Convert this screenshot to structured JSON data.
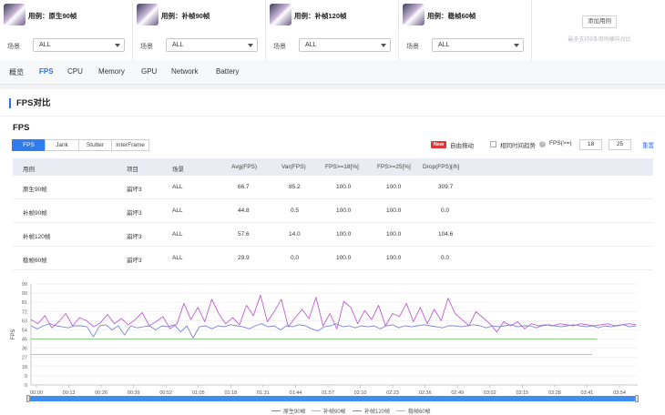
{
  "cases": [
    {
      "title": "用例：原生90帧",
      "scene_label": "场景",
      "scene_value": "ALL"
    },
    {
      "title": "用例：补帧90帧",
      "scene_label": "场景",
      "scene_value": "ALL"
    },
    {
      "title": "用例：补帧120帧",
      "scene_label": "场景",
      "scene_value": "ALL"
    },
    {
      "title": "用例：稳帧60帧",
      "scene_label": "场景",
      "scene_value": "ALL"
    }
  ],
  "add_case": {
    "label": "添加用例",
    "hint": "最多支持5条用例横向对比"
  },
  "tabs": [
    "概览",
    "FPS",
    "CPU",
    "Memory",
    "GPU",
    "Network",
    "Battery"
  ],
  "active_tab": "FPS",
  "section_title": "FPS对比",
  "sub_title": "FPS",
  "metric_tabs": [
    "FPS",
    "Jank",
    "Stutter",
    "InterFrame"
  ],
  "controls": {
    "new_badge": "New",
    "free_drag": "自由拖动",
    "same_time_trend": "相同时间趋势",
    "fps_label": "FPS(>=)",
    "fps_threshold_1": "18",
    "fps_threshold_2": "25",
    "reset": "重置"
  },
  "table": {
    "headers": [
      "用例",
      "项目",
      "场景",
      "Avg(FPS)",
      "Var(FPS)",
      "FPS>=18[%]",
      "FPS>=25[%]",
      "Drop(FPS)[/h]"
    ],
    "rows": [
      [
        "原生90帧",
        "崩坏3",
        "ALL",
        "66.7",
        "85.2",
        "100.0",
        "100.0",
        "309.7"
      ],
      [
        "补帧90帧",
        "崩坏3",
        "ALL",
        "44.8",
        "0.5",
        "100.0",
        "100.0",
        "0.0"
      ],
      [
        "补帧120帧",
        "崩坏3",
        "ALL",
        "57.6",
        "14.0",
        "100.0",
        "100.0",
        "104.6"
      ],
      [
        "稳帧60帧",
        "崩坏3",
        "ALL",
        "29.9",
        "0.0",
        "100.0",
        "100.0",
        "0.0"
      ]
    ]
  },
  "chart_data": {
    "type": "line",
    "ylabel": "FPS",
    "ylim": [
      0,
      99
    ],
    "yticks": [
      "0",
      "9",
      "18",
      "27",
      "36",
      "45",
      "54",
      "63",
      "72",
      "81",
      "90",
      "99"
    ],
    "xticks": [
      "00:00",
      "00:13",
      "00:26",
      "00:39",
      "00:52",
      "01:05",
      "01:18",
      "01:31",
      "01:44",
      "01:57",
      "02:10",
      "02:23",
      "02:36",
      "02:49",
      "03:02",
      "03:15",
      "03:28",
      "03:41",
      "03:54"
    ],
    "grid": true,
    "legend_position": "bottom",
    "series": [
      {
        "name": "原生90帧",
        "color": "#c25bd3",
        "values": [
          64,
          60,
          68,
          56,
          62,
          70,
          58,
          66,
          63,
          57,
          61,
          69,
          60,
          65,
          59,
          64,
          71,
          58,
          62,
          67,
          55,
          60,
          80,
          64,
          76,
          62,
          84,
          70,
          60,
          66,
          59,
          78,
          68,
          88,
          62,
          72,
          84,
          57,
          66,
          74,
          65,
          86,
          58,
          70,
          55,
          82,
          76,
          60,
          73,
          64,
          78,
          58,
          70,
          67,
          80,
          62,
          76,
          60,
          74,
          63,
          85,
          70,
          64,
          58,
          72,
          66,
          60,
          52,
          62,
          58,
          62,
          55,
          60,
          58,
          59,
          58,
          60,
          59,
          58,
          60,
          59,
          58,
          59,
          60,
          58,
          59,
          60,
          59
        ]
      },
      {
        "name": "补帧90帧",
        "color": "#8fcf8f",
        "values": [
          45,
          45,
          45,
          45,
          45,
          45,
          45,
          45,
          45,
          45,
          45,
          45,
          45,
          45,
          45,
          45,
          45,
          45,
          45,
          45,
          45,
          45,
          45,
          45,
          45,
          45,
          45,
          45,
          45,
          45,
          45,
          45,
          45,
          45,
          45,
          45,
          45,
          45,
          45,
          45,
          45,
          45,
          45,
          45,
          45,
          45,
          45,
          45,
          45,
          45,
          45,
          45,
          45,
          45,
          45,
          45,
          45,
          45,
          45,
          45,
          45,
          45,
          45,
          45,
          45,
          45,
          45,
          45,
          45,
          45,
          45,
          45,
          45,
          45,
          45,
          45,
          45,
          45,
          45,
          45,
          45,
          45,
          45
        ]
      },
      {
        "name": "补帧120帧",
        "color": "#7b86d6",
        "values": [
          58,
          55,
          58,
          60,
          58,
          57,
          56,
          58,
          58,
          57,
          47,
          58,
          59,
          54,
          58,
          49,
          58,
          56,
          57,
          58,
          54,
          58,
          57,
          59,
          52,
          58,
          46,
          57,
          58,
          55,
          58,
          57,
          59,
          58,
          57,
          55,
          58,
          60,
          57,
          58,
          54,
          58,
          57,
          59,
          58,
          55,
          53,
          57,
          58,
          60,
          57,
          58,
          56,
          58,
          57,
          58,
          55,
          58,
          59,
          56,
          58,
          57,
          58,
          59,
          58,
          57,
          56,
          58,
          58,
          57,
          58,
          59,
          58,
          56,
          58,
          57,
          58,
          59,
          57,
          58,
          58,
          56,
          58,
          59,
          58,
          57,
          58,
          59,
          58,
          57,
          58,
          56,
          58,
          57,
          58,
          59,
          57,
          58
        ]
      },
      {
        "name": "稳帧60帧",
        "color": "#7fc6e8",
        "values": [
          30,
          30,
          30,
          30,
          30,
          30,
          30,
          30,
          30,
          30,
          30,
          30,
          30,
          30,
          30,
          30,
          30,
          30,
          30,
          30,
          30,
          30,
          30,
          30,
          30,
          30,
          30,
          30,
          30,
          30,
          30,
          30,
          30,
          30,
          30,
          30,
          30,
          30,
          30,
          30,
          30,
          30,
          30,
          30,
          30,
          30,
          30,
          30,
          30,
          30,
          30,
          30,
          30,
          30,
          30,
          30,
          30,
          30,
          30,
          30,
          30,
          30,
          30,
          30,
          30,
          30,
          30,
          30,
          30,
          30,
          30,
          30,
          30,
          30,
          30,
          30,
          30,
          30,
          30,
          30,
          30,
          30,
          30,
          30,
          30,
          30,
          30,
          30,
          30
        ]
      }
    ]
  }
}
